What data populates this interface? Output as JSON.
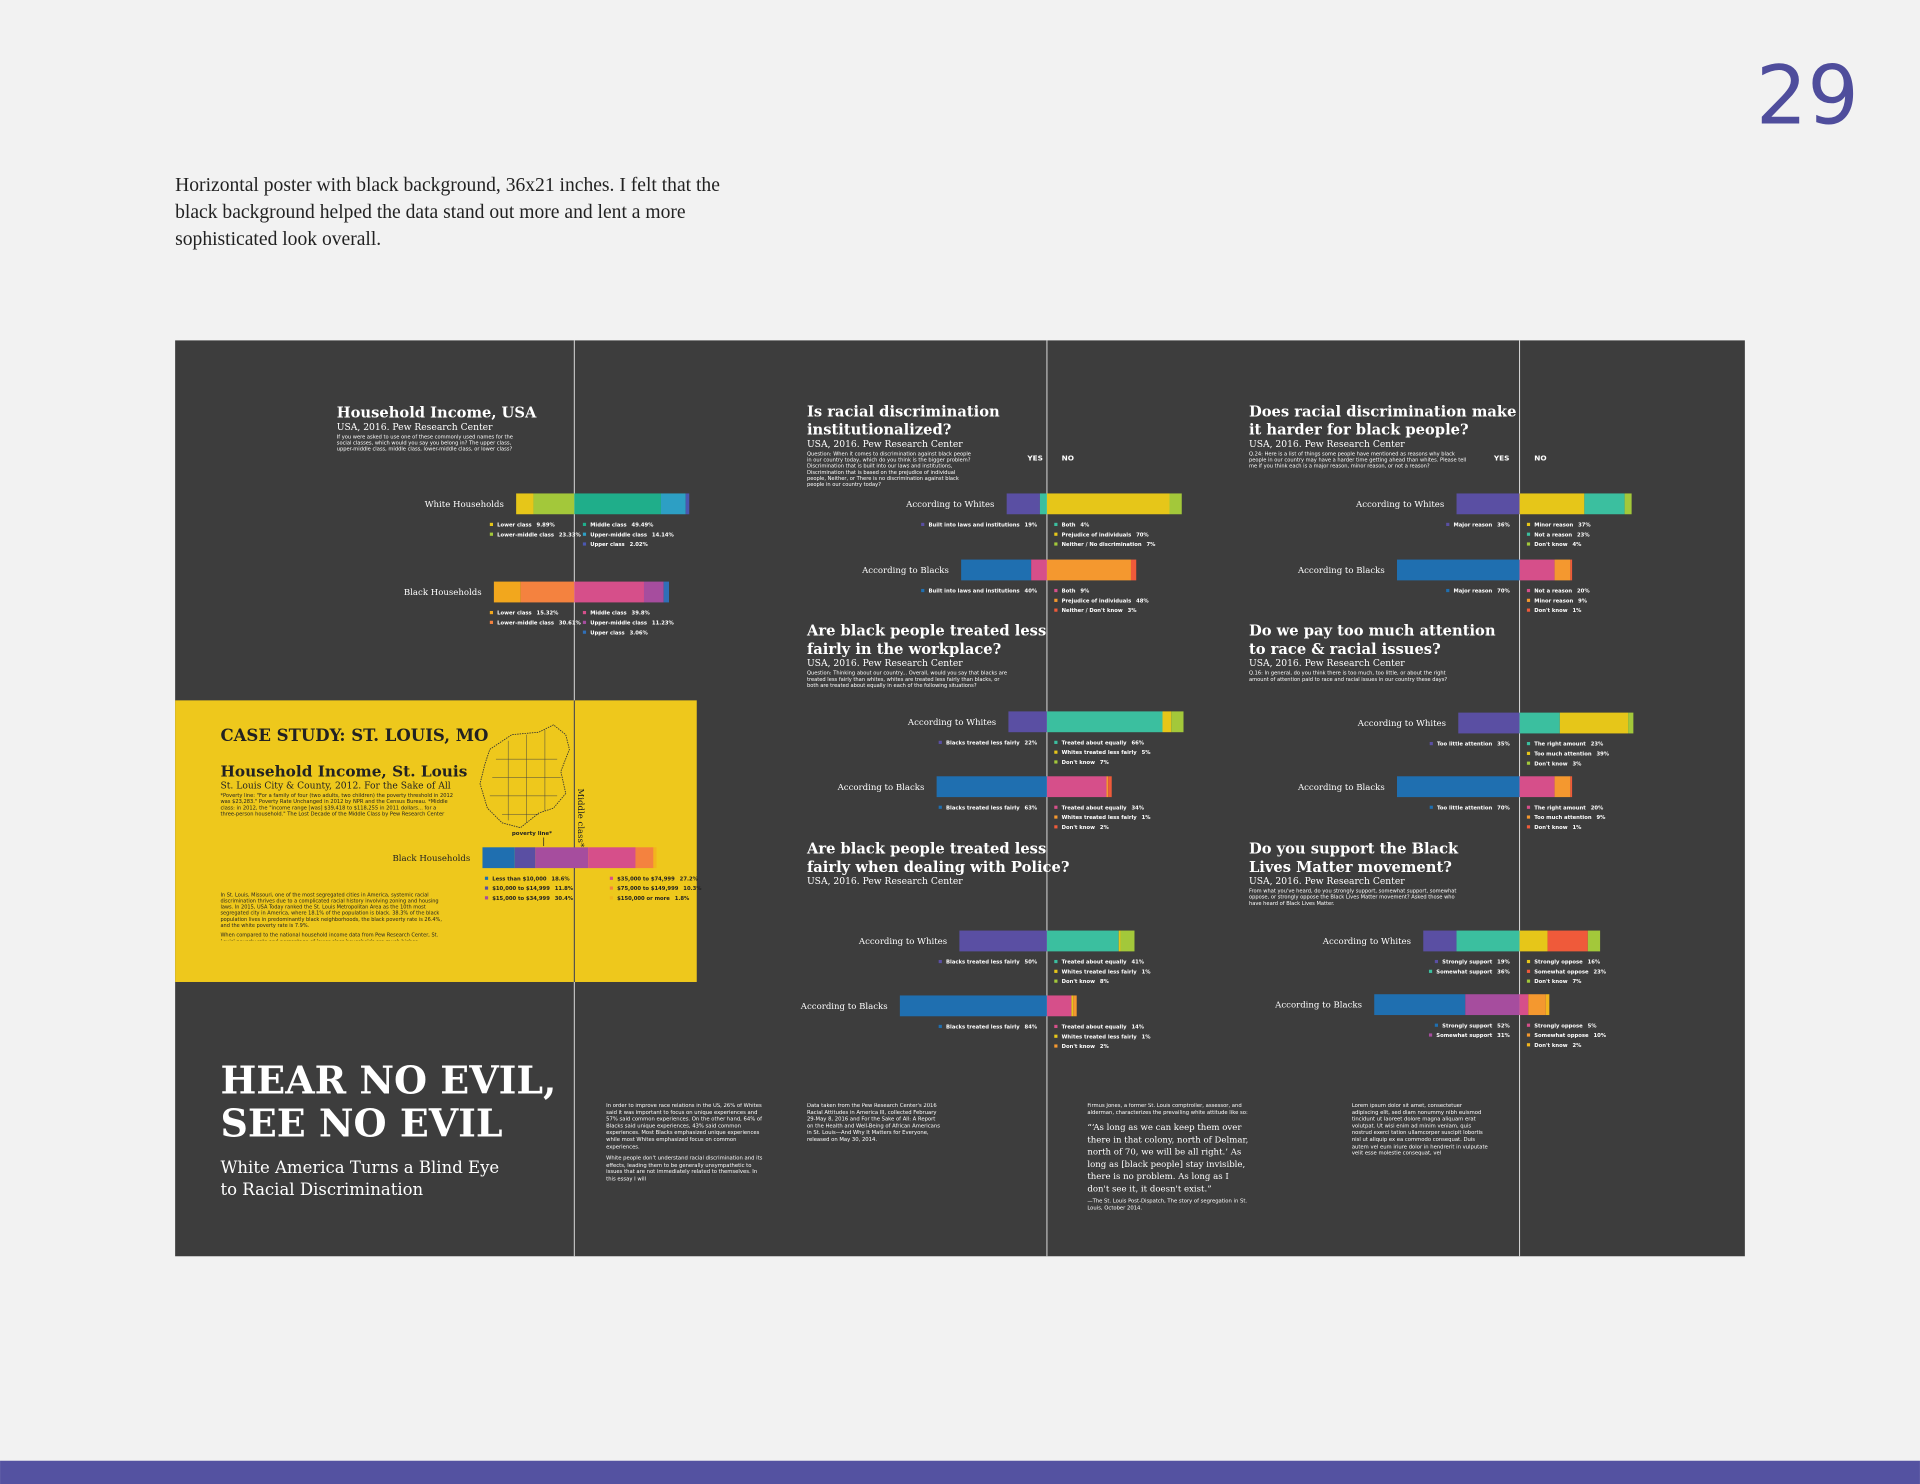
{
  "page_number": "29",
  "description_lines": [
    "Horizontal poster with black background, 36x21 inches. I felt that the",
    "black background helped the data stand out more and lent a more",
    "sophisticated look overall."
  ],
  "poster": {
    "charts": [
      {
        "title_lines": [
          "Household Income, USA"
        ],
        "subtitle": "USA, 2016. Pew Research Center",
        "question": "If you were asked to use one of these commonly used names for the social classes, which would you say you belong in? The upper class, upper-middle class, middle class, lower-middle class, or lower class?",
        "rows": [
          {
            "label": "White Households",
            "segments": [
              {
                "name": "Lower class",
                "color": "#e6c619",
                "value": 9.89,
                "label": "9.89%"
              },
              {
                "name": "Lower-middle class",
                "color": "#a3c83a",
                "value": 23.33,
                "label": "23.33%"
              },
              {
                "name": "Middle class",
                "color": "#1fae8a",
                "value": 49.49,
                "label": "49.49%"
              },
              {
                "name": "Upper-middle class",
                "color": "#2d9fc4",
                "value": 14.14,
                "label": "14.14%"
              },
              {
                "name": "Upper class",
                "color": "#4b57b0",
                "value": 2.02,
                "label": "2.02%"
              }
            ]
          },
          {
            "label": "Black Households",
            "segments": [
              {
                "name": "Lower class",
                "color": "#f2a71d",
                "value": 15.32,
                "label": "15.32%"
              },
              {
                "name": "Lower-middle class",
                "color": "#f4823f",
                "value": 30.61,
                "label": "30.61%"
              },
              {
                "name": "Middle class",
                "color": "#d64f8a",
                "value": 39.8,
                "label": "39.8%"
              },
              {
                "name": "Upper-middle class",
                "color": "#a64d9e",
                "value": 11.23,
                "label": "11.23%"
              },
              {
                "name": "Upper class",
                "color": "#2f6fb8",
                "value": 3.06,
                "label": "3.06%"
              }
            ]
          }
        ]
      },
      {
        "title_lines": [
          "Is racial discrimination",
          "institutionalized?"
        ],
        "subtitle": "USA, 2016. Pew Research Center",
        "question": "Question: When it comes to discrimination against black people in our country today, which do you think is the bigger problem? Discrimination that is built into our laws and institutions, Discrimination that is based on the prejudice of individual people, Neither, or There is no discrimination against black people in our country today?",
        "yes_label": "YES",
        "no_label": "NO",
        "rows": [
          {
            "label": "According to Whites",
            "segments": [
              {
                "name": "Built into laws and institutions",
                "color": "#5a4fa3",
                "value": 19,
                "label": "19%"
              },
              {
                "name": "Both",
                "color": "#3bbf9f",
                "value": 4,
                "label": "4%"
              },
              {
                "name": "Prejudice of individuals",
                "color": "#e6c619",
                "value": 70,
                "label": "70%"
              },
              {
                "name": "Neither / No discrimination",
                "color": "#a3c83a",
                "value": 7,
                "label": "7%"
              }
            ]
          },
          {
            "label": "According to Blacks",
            "segments": [
              {
                "name": "Built into laws and institutions",
                "color": "#1f6fb0",
                "value": 40,
                "label": "40%"
              },
              {
                "name": "Both",
                "color": "#d64f8a",
                "value": 9,
                "label": "9%"
              },
              {
                "name": "Prejudice of individuals",
                "color": "#f4982f",
                "value": 48,
                "label": "48%"
              },
              {
                "name": "Neither / Don't know",
                "color": "#ef5a3a",
                "value": 3,
                "label": "3%"
              }
            ]
          }
        ]
      },
      {
        "title_lines": [
          "Does racial discrimination make",
          "it harder for black people?"
        ],
        "subtitle": "USA, 2016. Pew Research Center",
        "question": "Q.24: Here is a list of things some people have mentioned as reasons why black people in our country may have a harder time getting ahead than whites. Please tell me if you think each is a major reason, minor reason, or not a reason?",
        "yes_label": "YES",
        "no_label": "NO",
        "rows": [
          {
            "label": "According to Whites",
            "segments": [
              {
                "name": "Major reason",
                "color": "#5a4fa3",
                "value": 36,
                "label": "36%"
              },
              {
                "name": "Minor reason",
                "color": "#e6c619",
                "value": 37,
                "label": "37%"
              },
              {
                "name": "Not a reason",
                "color": "#3bbf9f",
                "value": 23,
                "label": "23%"
              },
              {
                "name": "Don't know",
                "color": "#a3c83a",
                "value": 4,
                "label": "4%"
              }
            ]
          },
          {
            "label": "According to Blacks",
            "segments": [
              {
                "name": "Major reason",
                "color": "#1f6fb0",
                "value": 70,
                "label": "70%"
              },
              {
                "name": "Not a reason",
                "color": "#d64f8a",
                "value": 20,
                "label": "20%"
              },
              {
                "name": "Minor reason",
                "color": "#f4982f",
                "value": 9,
                "label": "9%"
              },
              {
                "name": "Don't know",
                "color": "#ef5a3a",
                "value": 1,
                "label": "1%"
              }
            ]
          }
        ]
      },
      {
        "title_lines": [
          "Are black people treated less",
          "fairly in the workplace?"
        ],
        "subtitle": "USA, 2016. Pew Research Center",
        "question": "Question: Thinking about our country... Overall, would you say that blacks are treated less fairly than whites, whites are treated less fairly than blacks, or both are treated about equally in each of the following situations?",
        "rows": [
          {
            "label": "According to Whites",
            "segments": [
              {
                "name": "Blacks treated less fairly",
                "color": "#5a4fa3",
                "value": 22,
                "label": "22%"
              },
              {
                "name": "Treated about equally",
                "color": "#3bbf9f",
                "value": 66,
                "label": "66%"
              },
              {
                "name": "Whites treated less fairly",
                "color": "#e6c619",
                "value": 5,
                "label": "5%"
              },
              {
                "name": "Don't know",
                "color": "#a3c83a",
                "value": 7,
                "label": "7%"
              }
            ]
          },
          {
            "label": "According to Blacks",
            "segments": [
              {
                "name": "Blacks treated less fairly",
                "color": "#1f6fb0",
                "value": 63,
                "label": "63%"
              },
              {
                "name": "Treated about equally",
                "color": "#d64f8a",
                "value": 34,
                "label": "34%"
              },
              {
                "name": "Whites treated less fairly",
                "color": "#f4982f",
                "value": 1,
                "label": "1%"
              },
              {
                "name": "Don't know",
                "color": "#ef5a3a",
                "value": 2,
                "label": "2%"
              }
            ]
          }
        ]
      },
      {
        "title_lines": [
          "Do we pay too much attention",
          "to race & racial issues?"
        ],
        "subtitle": "USA, 2016. Pew Research Center",
        "question": "Q.16: In general, do you think there is too much, too little, or about the right amount of attention paid to race and racial issues in our country these days?",
        "rows": [
          {
            "label": "According to Whites",
            "segments": [
              {
                "name": "Too little attention",
                "color": "#5a4fa3",
                "value": 35,
                "label": "35%"
              },
              {
                "name": "The right amount",
                "color": "#3bbf9f",
                "value": 23,
                "label": "23%"
              },
              {
                "name": "Too much attention",
                "color": "#e6c619",
                "value": 39,
                "label": "39%"
              },
              {
                "name": "Don't know",
                "color": "#a3c83a",
                "value": 3,
                "label": "3%"
              }
            ]
          },
          {
            "label": "According to Blacks",
            "segments": [
              {
                "name": "Too little attention",
                "color": "#1f6fb0",
                "value": 70,
                "label": "70%"
              },
              {
                "name": "The right amount",
                "color": "#d64f8a",
                "value": 20,
                "label": "20%"
              },
              {
                "name": "Too much attention",
                "color": "#f4982f",
                "value": 9,
                "label": "9%"
              },
              {
                "name": "Don't know",
                "color": "#ef5a3a",
                "value": 1,
                "label": "1%"
              }
            ]
          }
        ]
      },
      {
        "title_lines": [
          "Are black people treated less",
          "fairly when dealing with Police?"
        ],
        "subtitle": "USA, 2016. Pew Research Center",
        "rows": [
          {
            "label": "According to Whites",
            "segments": [
              {
                "name": "Blacks treated less fairly",
                "color": "#5a4fa3",
                "value": 50,
                "label": "50%"
              },
              {
                "name": "Treated about equally",
                "color": "#3bbf9f",
                "value": 41,
                "label": "41%"
              },
              {
                "name": "Whites treated less fairly",
                "color": "#e6c619",
                "value": 1,
                "label": "1%"
              },
              {
                "name": "Don't know",
                "color": "#a3c83a",
                "value": 8,
                "label": "8%"
              }
            ]
          },
          {
            "label": "According to Blacks",
            "segments": [
              {
                "name": "Blacks treated less fairly",
                "color": "#1f6fb0",
                "value": 84,
                "label": "84%"
              },
              {
                "name": "Treated about equally",
                "color": "#d64f8a",
                "value": 14,
                "label": "14%"
              },
              {
                "name": "Whites treated less fairly",
                "color": "#e6c619",
                "value": 1,
                "label": "1%"
              },
              {
                "name": "Don't know",
                "color": "#f4982f",
                "value": 2,
                "label": "2%"
              }
            ]
          }
        ]
      },
      {
        "title_lines": [
          "Do you support the Black",
          "Lives Matter movement?"
        ],
        "subtitle": "USA, 2016. Pew Research Center",
        "question": "From what you've heard, do you strongly support, somewhat support, somewhat oppose, or strongly oppose the Black Lives Matter movement? Asked those who have heard of Black Lives Matter.",
        "rows": [
          {
            "label": "According to Whites",
            "segments": [
              {
                "name": "Strongly support",
                "color": "#5a4fa3",
                "value": 19,
                "label": "19%"
              },
              {
                "name": "Somewhat support",
                "color": "#3bbf9f",
                "value": 36,
                "label": "36%"
              },
              {
                "name": "Strongly oppose",
                "color": "#e6c619",
                "value": 16,
                "label": "16%"
              },
              {
                "name": "Somewhat oppose",
                "color": "#ef5a3a",
                "value": 23,
                "label": "23%"
              },
              {
                "name": "Don't know",
                "color": "#a3c83a",
                "value": 7,
                "label": "7%"
              }
            ]
          },
          {
            "label": "According to Blacks",
            "segments": [
              {
                "name": "Strongly support",
                "color": "#1f6fb0",
                "value": 52,
                "label": "52%"
              },
              {
                "name": "Somewhat support",
                "color": "#a64d9e",
                "value": 31,
                "label": "31%"
              },
              {
                "name": "Strongly oppose",
                "color": "#d64f8a",
                "value": 5,
                "label": "5%"
              },
              {
                "name": "Somewhat oppose",
                "color": "#f4982f",
                "value": 10,
                "label": "10%"
              },
              {
                "name": "Don't know",
                "color": "#f2b51d",
                "value": 2,
                "label": "2%"
              }
            ]
          }
        ]
      },
      {
        "title_lines": [
          "Household Income, St. Louis"
        ],
        "subtitle": "St. Louis City & County, 2012. For the Sake of All",
        "question": "*Poverty line: \"For a family of four (two adults, two children) the poverty threshold in 2012 was $23,283.\" Poverty Rate Unchanged in 2012 by NPR and the Census Bureau. *Middle class: in 2012, the \"income range [was] $39,418 to $118,255 in 2011 dollars... for a three-person household.\" The Lost Decade of the Middle Class by Pew Research Center",
        "rows": [
          {
            "label": "Black Households",
            "segments": [
              {
                "name": "Less than $10,000",
                "color": "#1f6fb0",
                "value": 18.6,
                "label": "18.6%"
              },
              {
                "name": "$10,000 to $14,999",
                "color": "#5a4fa3",
                "value": 11.8,
                "label": "11.8%"
              },
              {
                "name": "$15,000 to $34,999",
                "color": "#a64d9e",
                "value": 30.4,
                "label": "30.4%"
              },
              {
                "name": "$35,000 to $74,999",
                "color": "#d64f8a",
                "value": 27.2,
                "label": "27.2%"
              },
              {
                "name": "$75,000 to $149,999",
                "color": "#f4823f",
                "value": 10.3,
                "label": "10.3%"
              },
              {
                "name": "$150,000 or more",
                "color": "#f2b51d",
                "value": 1.8,
                "label": "1.8%"
              }
            ]
          }
        ]
      }
    ],
    "case_study": {
      "heading": "CASE STUDY: ST. LOUIS, MO",
      "poverty_line": "poverty line*",
      "middle_class": "Middle class*",
      "body": [
        "In St. Louis, Missouri, one of the most segregated cities in America, systemic racial discrimination thrives due to a complicated racial history involving zoning and housing laws. In 2015, USA Today ranked the St. Louis Metropolitan Area as the 10th most segregated city in America, where 18.1% of the population is black. 38.3% of the black population lives in predominantly black neighborhoods, the black poverty rate is 26.4%, and the white poverty rate is 7.9%.",
        "When compared to the national household income data from Pew Research Center, St. Louis' poverty rate and percentage of lower class households are much higher."
      ]
    },
    "headline_lines": [
      "HEAR NO EVIL,",
      "SEE NO EVIL"
    ],
    "subheadline_lines": [
      "White America Turns a Blind Eye",
      "to Racial Discrimination"
    ],
    "columns": [
      [
        "In order to improve race relations in the US, 26% of Whites said it was important to focus on unique experiences and 57% said common experiences. On the other hand, 64% of Blacks said unique experiences, 43% said common experiences. Most Blacks emphasized unique experiences while most Whites emphasized focus on common experiences.",
        "White people don't understand racial discrimination and its effects, leading them to be generally unsympathetic to issues that are not immediately related to themselves. In this essay I will"
      ],
      [
        "Data taken from the Pew Research Center's 2016 Racial Attitudes in America III, collected February 29-May 8, 2016 and For the Sake of All: A Report on the Health and Well-Being of African Americans in St. Louis—And Why It Matters for Everyone, released on May 30, 2014."
      ],
      [
        "Firmus Jones, a former St. Louis comptroller, assessor, and alderman, characterizes the prevailing white attitude like so:",
        "“‘As long as we can keep them over there in that colony, north of Delmar, north of 70, we will be all right.’ As long as [black people] stay invisible, there is no problem. As long as I don't see it, it doesn't exist.”",
        "—The St. Louis Post-Dispatch, The story of segregation in St. Louis, October 2014."
      ],
      [
        "Lorem ipsum dolor sit amet, consectetuer adipiscing elit, sed diam nonummy nibh euismod tincidunt ut laoreet dolore magna aliquam erat volutpat. Ut wisi enim ad minim veniam, quis nostrud exerci tation ullamcorper suscipit lobortis nisl ut aliquip ex ea commodo consequat. Duis autem vel eum iriure dolor in hendrerit in vulputate velit esse molestie consequat, vel"
      ]
    ]
  }
}
